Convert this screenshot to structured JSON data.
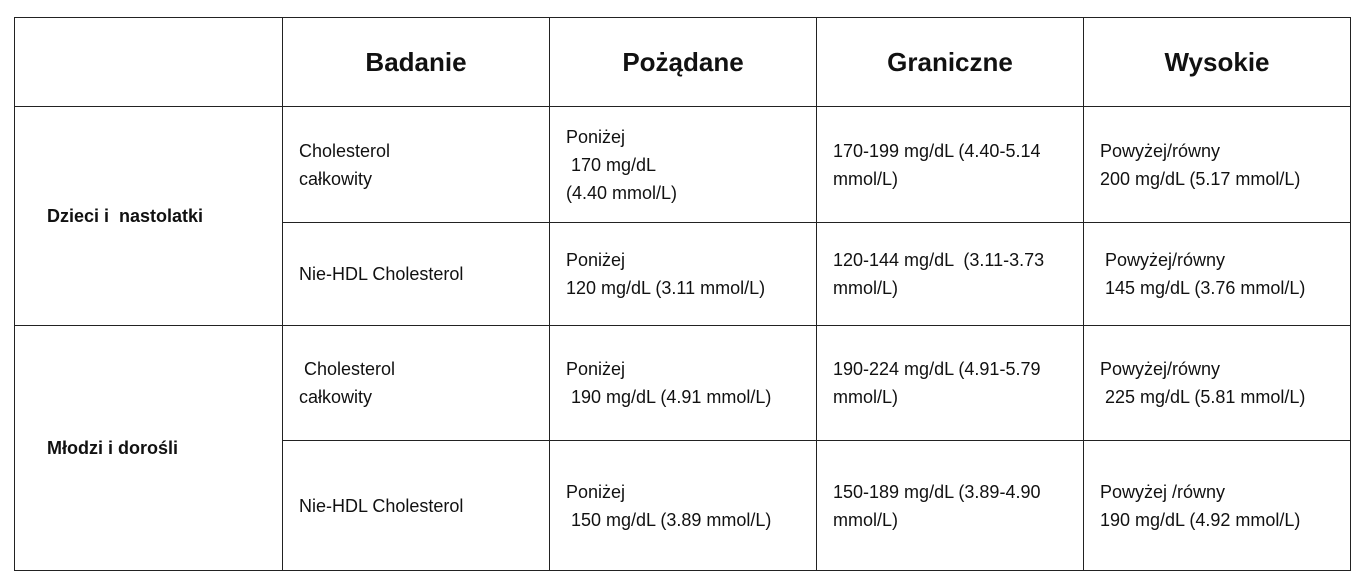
{
  "table": {
    "columns": [
      "Badanie",
      "Pożądane",
      "Graniczne",
      "Wysokie"
    ],
    "groups": [
      {
        "label": "Dzieci i  nastolatki",
        "rows": [
          [
            [
              "Cholesterol",
              "całkowity"
            ],
            [
              "Poniżej",
              " 170 mg/dL",
              "(4.40 mmol/L)"
            ],
            [
              "170-199 mg/dL (4.40-5.14",
              "mmol/L)"
            ],
            [
              "Powyżej/równy",
              "200 mg/dL (5.17 mmol/L)"
            ]
          ],
          [
            [
              "Nie-HDL Cholesterol"
            ],
            [
              "Poniżej",
              "120 mg/dL (3.11 mmol/L)"
            ],
            [
              "120-144 mg/dL  (3.11-3.73",
              "mmol/L)"
            ],
            [
              " Powyżej/równy",
              " 145 mg/dL (3.76 mmol/L)"
            ]
          ]
        ]
      },
      {
        "label": "Młodzi i dorośli",
        "rows": [
          [
            [
              " Cholesterol",
              "całkowity"
            ],
            [
              "Poniżej",
              " 190 mg/dL (4.91 mmol/L)"
            ],
            [
              "190-224 mg/dL (4.91-5.79",
              "mmol/L)"
            ],
            [
              "Powyżej/równy",
              " 225 mg/dL (5.81 mmol/L)"
            ]
          ],
          [
            [
              "Nie-HDL Cholesterol"
            ],
            [
              "Poniżej",
              " 150 mg/dL (3.89 mmol/L)"
            ],
            [
              "150-189 mg/dL (3.89-4.90",
              "mmol/L)"
            ],
            [
              "Powyżej /równy",
              "190 mg/dL (4.92 mmol/L)"
            ]
          ]
        ]
      }
    ]
  }
}
